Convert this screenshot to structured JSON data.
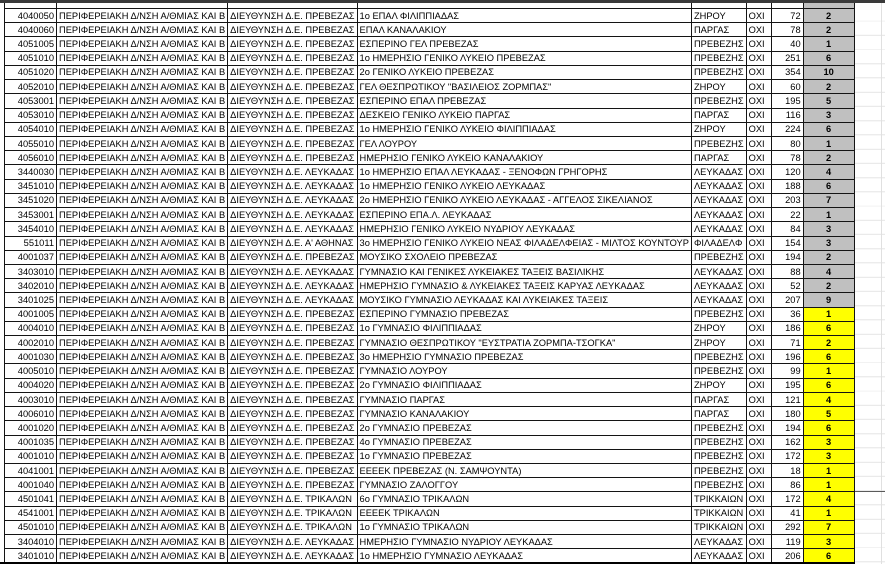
{
  "app": {
    "type": "spreadsheet-table-view",
    "regional_directorate_label": "ΠΕΡΙΦΕΡΕΙΑΚΗ Δ/ΝΣΗ Α/ΘΜΙΑΣ ΚΑΙ Β",
    "columns": [
      "school_code",
      "regional_directorate",
      "directorate",
      "school_name",
      "municipality",
      "flag",
      "students",
      "allocation"
    ],
    "colors": {
      "highlight_gray": "#C0C0C0",
      "highlight_yellow": "#FFFF00",
      "grid_border": "#141414",
      "light_gridline": "#E4E4E4"
    }
  },
  "partial_row": {
    "c": "",
    "d": "",
    "s": "",
    "m": "",
    "f": "",
    "n": "",
    "a": "",
    "h": "gray"
  },
  "rows": [
    {
      "c": "4040050",
      "d": "ΔΙΕΥΘΥΝΣΗ Δ.Ε. ΠΡΕΒΕΖΑΣ",
      "s": "1ο ΕΠΑΛ ΦΙΛΙΠΠΙΑΔΑΣ",
      "m": "ΖΗΡΟΥ",
      "f": "ΟΧΙ",
      "n": "72",
      "a": "2",
      "h": "gray"
    },
    {
      "c": "4040060",
      "d": "ΔΙΕΥΘΥΝΣΗ Δ.Ε. ΠΡΕΒΕΖΑΣ",
      "s": "ΕΠΑΛ ΚΑΝΑΛΑΚΙΟΥ",
      "m": "ΠΑΡΓΑΣ",
      "f": "ΟΧΙ",
      "n": "78",
      "a": "2",
      "h": "gray"
    },
    {
      "c": "4051005",
      "d": "ΔΙΕΥΘΥΝΣΗ Δ.Ε. ΠΡΕΒΕΖΑΣ",
      "s": "ΕΣΠΕΡΙΝΟ ΓΕΛ ΠΡΕΒΕΖΑΣ",
      "m": "ΠΡΕΒΕΖΗΣ",
      "f": "ΟΧΙ",
      "n": "40",
      "a": "1",
      "h": "gray"
    },
    {
      "c": "4051010",
      "d": "ΔΙΕΥΘΥΝΣΗ Δ.Ε. ΠΡΕΒΕΖΑΣ",
      "s": "1ο ΗΜΕΡΗΣΙΟ ΓΕΝΙΚΟ ΛΥΚΕΙΟ ΠΡΕΒΕΖΑΣ",
      "m": "ΠΡΕΒΕΖΗΣ",
      "f": "ΟΧΙ",
      "n": "251",
      "a": "6",
      "h": "gray"
    },
    {
      "c": "4051020",
      "d": "ΔΙΕΥΘΥΝΣΗ Δ.Ε. ΠΡΕΒΕΖΑΣ",
      "s": "2ο ΓΕΝΙΚΟ ΛΥΚΕΙΟ ΠΡΕΒΕΖΑΣ",
      "m": "ΠΡΕΒΕΖΗΣ",
      "f": "ΟΧΙ",
      "n": "354",
      "a": "10",
      "h": "gray"
    },
    {
      "c": "4052010",
      "d": "ΔΙΕΥΘΥΝΣΗ Δ.Ε. ΠΡΕΒΕΖΑΣ",
      "s": "ΓΕΛ ΘΕΣΠΡΩΤΙΚΟΥ \"ΒΑΣΙΛΕΙΟΣ ΖΟΡΜΠΑΣ\"",
      "m": "ΖΗΡΟΥ",
      "f": "ΟΧΙ",
      "n": "60",
      "a": "2",
      "h": "gray"
    },
    {
      "c": "4053001",
      "d": "ΔΙΕΥΘΥΝΣΗ Δ.Ε. ΠΡΕΒΕΖΑΣ",
      "s": "ΕΣΠΕΡΙΝΟ ΕΠΑΛ ΠΡΕΒΕΖΑΣ",
      "m": "ΠΡΕΒΕΖΗΣ",
      "f": "ΟΧΙ",
      "n": "195",
      "a": "5",
      "h": "gray"
    },
    {
      "c": "4053010",
      "d": "ΔΙΕΥΘΥΝΣΗ Δ.Ε. ΠΡΕΒΕΖΑΣ",
      "s": "ΔΕΣΚΕΙΟ ΓΕΝΙΚΟ ΛΥΚΕΙΟ ΠΑΡΓΑΣ",
      "m": "ΠΑΡΓΑΣ",
      "f": "ΟΧΙ",
      "n": "116",
      "a": "3",
      "h": "gray"
    },
    {
      "c": "4054010",
      "d": "ΔΙΕΥΘΥΝΣΗ Δ.Ε. ΠΡΕΒΕΖΑΣ",
      "s": "1ο ΗΜΕΡΗΣΙΟ ΓΕΝΙΚΟ ΛΥΚΕΙΟ ΦΙΛΙΠΠΙΑΔΑΣ",
      "m": "ΖΗΡΟΥ",
      "f": "ΟΧΙ",
      "n": "224",
      "a": "6",
      "h": "gray"
    },
    {
      "c": "4055010",
      "d": "ΔΙΕΥΘΥΝΣΗ Δ.Ε. ΠΡΕΒΕΖΑΣ",
      "s": "ΓΕΛ ΛΟΥΡΟΥ",
      "m": "ΠΡΕΒΕΖΗΣ",
      "f": "ΟΧΙ",
      "n": "80",
      "a": "1",
      "h": "gray"
    },
    {
      "c": "4056010",
      "d": "ΔΙΕΥΘΥΝΣΗ Δ.Ε. ΠΡΕΒΕΖΑΣ",
      "s": "ΗΜΕΡΗΣΙΟ ΓΕΝΙΚΟ ΛΥΚΕΙΟ ΚΑΝΑΛΑΚΙΟΥ",
      "m": "ΠΑΡΓΑΣ",
      "f": "ΟΧΙ",
      "n": "78",
      "a": "2",
      "h": "gray"
    },
    {
      "c": "3440030",
      "d": "ΔΙΕΥΘΥΝΣΗ Δ.Ε. ΛΕΥΚΑΔΑΣ",
      "s": "1ο ΗΜΕΡΗΣΙΟ ΕΠΑΛ ΛΕΥΚΑΔΑΣ - ΞΕΝΟΦΩΝ ΓΡΗΓΟΡΗΣ",
      "m": "ΛΕΥΚΑΔΑΣ",
      "f": "ΟΧΙ",
      "n": "120",
      "a": "4",
      "h": "gray"
    },
    {
      "c": "3451010",
      "d": "ΔΙΕΥΘΥΝΣΗ Δ.Ε. ΛΕΥΚΑΔΑΣ",
      "s": "1ο ΗΜΕΡΗΣΙΟ ΓΕΝΙΚΟ ΛΥΚΕΙΟ ΛΕΥΚΑΔΑΣ",
      "m": "ΛΕΥΚΑΔΑΣ",
      "f": "ΟΧΙ",
      "n": "188",
      "a": "6",
      "h": "gray"
    },
    {
      "c": "3451020",
      "d": "ΔΙΕΥΘΥΝΣΗ Δ.Ε. ΛΕΥΚΑΔΑΣ",
      "s": "2ο ΗΜΕΡΗΣΙΟ ΓΕΝΙΚΟ ΛΥΚΕΙΟ ΛΕΥΚΑΔΑΣ - ΑΓΓΕΛΟΣ ΣΙΚΕΛΙΑΝΟΣ",
      "m": "ΛΕΥΚΑΔΑΣ",
      "f": "ΟΧΙ",
      "n": "203",
      "a": "7",
      "h": "gray"
    },
    {
      "c": "3453001",
      "d": "ΔΙΕΥΘΥΝΣΗ Δ.Ε. ΛΕΥΚΑΔΑΣ",
      "s": "ΕΣΠΕΡΙΝΟ ΕΠΑ.Λ. ΛΕΥΚΑΔΑΣ",
      "m": "ΛΕΥΚΑΔΑΣ",
      "f": "ΟΧΙ",
      "n": "22",
      "a": "1",
      "h": "gray"
    },
    {
      "c": "3454010",
      "d": "ΔΙΕΥΘΥΝΣΗ Δ.Ε. ΛΕΥΚΑΔΑΣ",
      "s": "ΗΜΕΡΗΣΙΟ ΓΕΝΙΚΟ ΛΥΚΕΙΟ ΝΥΔΡΙΟΥ ΛΕΥΚΑΔΑΣ",
      "m": "ΛΕΥΚΑΔΑΣ",
      "f": "ΟΧΙ",
      "n": "84",
      "a": "3",
      "h": "gray"
    },
    {
      "c": "551011",
      "d": "ΔΙΕΥΘΥΝΣΗ Δ.Ε. Α' ΑΘΗΝΑΣ",
      "s": "3ο ΗΜΕΡΗΣΙΟ ΓΕΝΙΚΟ ΛΥΚΕΙΟ ΝΕΑΣ ΦΙΛΑΔΕΛΦΕΙΑΣ - ΜΙΛΤΟΣ ΚΟΥΝΤΟΥΡ",
      "m": "ΦΙΛΑΔΕΛΦ",
      "f": "ΟΧΙ",
      "n": "154",
      "a": "3",
      "h": "gray"
    },
    {
      "c": "4001037",
      "d": "ΔΙΕΥΘΥΝΣΗ Δ.Ε. ΠΡΕΒΕΖΑΣ",
      "s": "ΜΟΥΣΙΚΟ ΣΧΟΛΕΙΟ ΠΡΕΒΕΖΑΣ",
      "m": "ΠΡΕΒΕΖΗΣ",
      "f": "ΟΧΙ",
      "n": "194",
      "a": "2",
      "h": "gray"
    },
    {
      "c": "3403010",
      "d": "ΔΙΕΥΘΥΝΣΗ Δ.Ε. ΛΕΥΚΑΔΑΣ",
      "s": "ΓΥΜΝΑΣΙΟ ΚΑΙ ΓΕΝΙΚΕΣ ΛΥΚΕΙΑΚΕΣ ΤΑΞΕΙΣ ΒΑΣΙΛΙΚΗΣ",
      "m": "ΛΕΥΚΑΔΑΣ",
      "f": "ΟΧΙ",
      "n": "88",
      "a": "4",
      "h": "gray"
    },
    {
      "c": "3402010",
      "d": "ΔΙΕΥΘΥΝΣΗ Δ.Ε. ΛΕΥΚΑΔΑΣ",
      "s": "ΗΜΕΡΗΣΙΟ ΓΥΜΝΑΣΙΟ & ΛΥΚΕΙΑΚΕΣ ΤΑΞΕΙΣ ΚΑΡΥΑΣ ΛΕΥΚΑΔΑΣ",
      "m": "ΛΕΥΚΑΔΑΣ",
      "f": "ΟΧΙ",
      "n": "52",
      "a": "2",
      "h": "gray"
    },
    {
      "c": "3401025",
      "d": "ΔΙΕΥΘΥΝΣΗ Δ.Ε. ΛΕΥΚΑΔΑΣ",
      "s": "ΜΟΥΣΙΚΟ ΓΥΜΝΑΣΙΟ ΛΕΥΚΑΔΑΣ ΚΑΙ ΛΥΚΕΙΑΚΕΣ ΤΑΞΕΙΣ",
      "m": "ΛΕΥΚΑΔΑΣ",
      "f": "ΟΧΙ",
      "n": "207",
      "a": "9",
      "h": "gray"
    },
    {
      "c": "4001005",
      "d": "ΔΙΕΥΘΥΝΣΗ Δ.Ε. ΠΡΕΒΕΖΑΣ",
      "s": "ΕΣΠΕΡΙΝΟ ΓΥΜΝΑΣΙΟ ΠΡΕΒΕΖΑΣ",
      "m": "ΠΡΕΒΕΖΗΣ",
      "f": "ΟΧΙ",
      "n": "36",
      "a": "1",
      "h": "yellow"
    },
    {
      "c": "4004010",
      "d": "ΔΙΕΥΘΥΝΣΗ Δ.Ε. ΠΡΕΒΕΖΑΣ",
      "s": "1ο ΓΥΜΝΑΣΙΟ ΦΙΛΙΠΠΙΑΔΑΣ",
      "m": "ΖΗΡΟΥ",
      "f": "ΟΧΙ",
      "n": "186",
      "a": "6",
      "h": "yellow"
    },
    {
      "c": "4002010",
      "d": "ΔΙΕΥΘΥΝΣΗ Δ.Ε. ΠΡΕΒΕΖΑΣ",
      "s": "ΓΥΜΝΑΣΙΟ ΘΕΣΠΡΩΤΙΚΟΥ \"ΕΥΣΤΡΑΤΙΑ ΖΟΡΜΠΑ-ΤΣΟΓΚΑ\"",
      "m": "ΖΗΡΟΥ",
      "f": "ΟΧΙ",
      "n": "71",
      "a": "2",
      "h": "yellow"
    },
    {
      "c": "4001030",
      "d": "ΔΙΕΥΘΥΝΣΗ Δ.Ε. ΠΡΕΒΕΖΑΣ",
      "s": "3ο ΗΜΕΡΗΣΙΟ ΓΥΜΝΑΣΙΟ ΠΡΕΒΕΖΑΣ",
      "m": "ΠΡΕΒΕΖΗΣ",
      "f": "ΟΧΙ",
      "n": "196",
      "a": "6",
      "h": "yellow"
    },
    {
      "c": "4005010",
      "d": "ΔΙΕΥΘΥΝΣΗ Δ.Ε. ΠΡΕΒΕΖΑΣ",
      "s": "ΓΥΜΝΑΣΙΟ ΛΟΥΡΟΥ",
      "m": "ΠΡΕΒΕΖΗΣ",
      "f": "ΟΧΙ",
      "n": "99",
      "a": "1",
      "h": "yellow"
    },
    {
      "c": "4004020",
      "d": "ΔΙΕΥΘΥΝΣΗ Δ.Ε. ΠΡΕΒΕΖΑΣ",
      "s": "2ο ΓΥΜΝΑΣΙΟ ΦΙΛΙΠΠΙΑΔΑΣ",
      "m": "ΖΗΡΟΥ",
      "f": "ΟΧΙ",
      "n": "195",
      "a": "6",
      "h": "yellow"
    },
    {
      "c": "4003010",
      "d": "ΔΙΕΥΘΥΝΣΗ Δ.Ε. ΠΡΕΒΕΖΑΣ",
      "s": "ΓΥΜΝΑΣΙΟ ΠΑΡΓΑΣ",
      "m": "ΠΑΡΓΑΣ",
      "f": "ΟΧΙ",
      "n": "121",
      "a": "4",
      "h": "yellow"
    },
    {
      "c": "4006010",
      "d": "ΔΙΕΥΘΥΝΣΗ Δ.Ε. ΠΡΕΒΕΖΑΣ",
      "s": "ΓΥΜΝΑΣΙΟ ΚΑΝΑΛΑΚΙΟΥ",
      "m": "ΠΑΡΓΑΣ",
      "f": "ΟΧΙ",
      "n": "180",
      "a": "5",
      "h": "yellow"
    },
    {
      "c": "4001020",
      "d": "ΔΙΕΥΘΥΝΣΗ Δ.Ε. ΠΡΕΒΕΖΑΣ",
      "s": "2ο ΓΥΜΝΑΣΙΟ ΠΡΕΒΕΖΑΣ",
      "m": "ΠΡΕΒΕΖΗΣ",
      "f": "ΟΧΙ",
      "n": "194",
      "a": "6",
      "h": "yellow"
    },
    {
      "c": "4001035",
      "d": "ΔΙΕΥΘΥΝΣΗ Δ.Ε. ΠΡΕΒΕΖΑΣ",
      "s": "4ο ΓΥΜΝΑΣΙΟ ΠΡΕΒΕΖΑΣ",
      "m": "ΠΡΕΒΕΖΗΣ",
      "f": "ΟΧΙ",
      "n": "162",
      "a": "3",
      "h": "yellow"
    },
    {
      "c": "4001010",
      "d": "ΔΙΕΥΘΥΝΣΗ Δ.Ε. ΠΡΕΒΕΖΑΣ",
      "s": "1ο ΓΥΜΝΑΣΙΟ ΠΡΕΒΕΖΑΣ",
      "m": "ΠΡΕΒΕΖΗΣ",
      "f": "ΟΧΙ",
      "n": "172",
      "a": "3",
      "h": "yellow"
    },
    {
      "c": "4041001",
      "d": "ΔΙΕΥΘΥΝΣΗ Δ.Ε. ΠΡΕΒΕΖΑΣ",
      "s": "ΕΕΕΕΚ ΠΡΕΒΕΖΑΣ (Ν. ΣΑΜΨΟΥΝΤΑ)",
      "m": "ΠΡΕΒΕΖΗΣ",
      "f": "ΟΧΙ",
      "n": "18",
      "a": "1",
      "h": "yellow"
    },
    {
      "c": "4001040",
      "d": "ΔΙΕΥΘΥΝΣΗ Δ.Ε. ΠΡΕΒΕΖΑΣ",
      "s": "ΓΥΜΝΑΣΙΟ ΖΑΛΟΓΓΟΥ",
      "m": "ΠΡΕΒΕΖΗΣ",
      "f": "ΟΧΙ",
      "n": "86",
      "a": "1",
      "h": "yellow"
    },
    {
      "c": "4501041",
      "d": "ΔΙΕΥΘΥΝΣΗ Δ.Ε. ΤΡΙΚΑΛΩΝ",
      "s": "6ο ΓΥΜΝΑΣΙΟ ΤΡΙΚΑΛΩΝ",
      "m": "ΤΡΙΚΚΑΙΩΝ",
      "f": "ΟΧΙ",
      "n": "172",
      "a": "4",
      "h": "yellow"
    },
    {
      "c": "4541001",
      "d": "ΔΙΕΥΘΥΝΣΗ Δ.Ε. ΤΡΙΚΑΛΩΝ",
      "s": "ΕΕΕΕΚ ΤΡΙΚΑΛΩΝ",
      "m": "ΤΡΙΚΚΑΙΩΝ",
      "f": "ΟΧΙ",
      "n": "41",
      "a": "1",
      "h": "yellow"
    },
    {
      "c": "4501010",
      "d": "ΔΙΕΥΘΥΝΣΗ Δ.Ε. ΤΡΙΚΑΛΩΝ",
      "s": "1ο ΓΥΜΝΑΣΙΟ ΤΡΙΚΑΛΩΝ",
      "m": "ΤΡΙΚΚΑΙΩΝ",
      "f": "ΟΧΙ",
      "n": "292",
      "a": "7",
      "h": "yellow"
    },
    {
      "c": "3404010",
      "d": "ΔΙΕΥΘΥΝΣΗ Δ.Ε. ΛΕΥΚΑΔΑΣ",
      "s": "ΗΜΕΡΗΣΙΟ ΓΥΜΝΑΣΙΟ ΝΥΔΡΙΟΥ ΛΕΥΚΑΔΑΣ",
      "m": "ΛΕΥΚΑΔΑΣ",
      "f": "ΟΧΙ",
      "n": "119",
      "a": "3",
      "h": "yellow"
    },
    {
      "c": "3401010",
      "d": "ΔΙΕΥΘΥΝΣΗ Δ.Ε. ΛΕΥΚΑΔΑΣ",
      "s": "1ο ΗΜΕΡΗΣΙΟ ΓΥΜΝΑΣΙΟ ΛΕΥΚΑΔΑΣ",
      "m": "ΛΕΥΚΑΔΑΣ",
      "f": "ΟΧΙ",
      "n": "206",
      "a": "6",
      "h": "yellow"
    }
  ]
}
